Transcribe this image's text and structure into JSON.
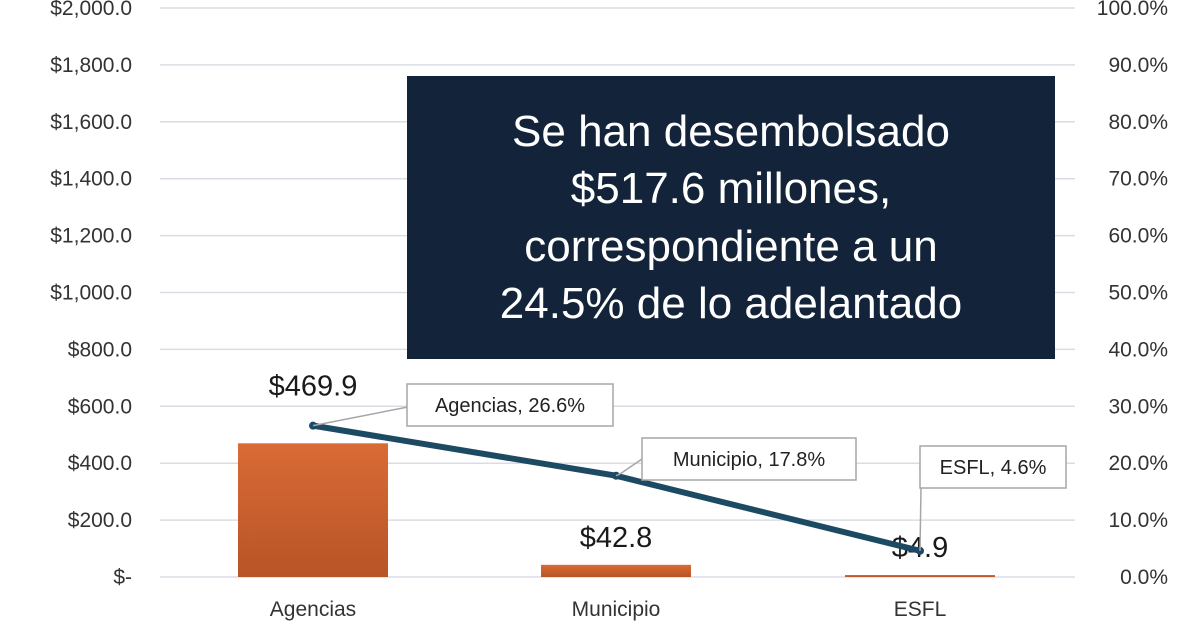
{
  "banner": {
    "lines": [
      "Se han desembolsado",
      "$517.6 millones,",
      "correspondiente a un",
      "24.5% de lo adelantado"
    ]
  },
  "colors": {
    "bar_top": "#d96b36",
    "bar_bottom": "#b85426",
    "line": "#1d4a63",
    "banner_bg": "#13243a"
  },
  "chart_data": {
    "type": "bar",
    "categories": [
      "Agencias",
      "Municipio",
      "ESFL"
    ],
    "series": [
      {
        "axis": "left",
        "chart": "bar",
        "values": [
          469.9,
          42.8,
          4.9
        ],
        "data_labels": [
          "$469.9",
          "$42.8",
          "$4.9"
        ]
      },
      {
        "axis": "right",
        "chart": "line",
        "values": [
          26.6,
          17.8,
          4.6
        ],
        "data_labels": [
          "Agencias, 26.6%",
          "Municipio, 17.8%",
          "ESFL, 4.6%"
        ]
      }
    ],
    "left_axis": {
      "ylim": [
        0,
        2000
      ],
      "ticks": [
        0,
        200,
        400,
        600,
        800,
        1000,
        1200,
        1400,
        1600,
        1800,
        2000
      ],
      "tick_labels": [
        "$-",
        "$200.0",
        "$400.0",
        "$600.0",
        "$800.0",
        "$1,000.0",
        "$1,200.0",
        "$1,400.0",
        "$1,600.0",
        "$1,800.0",
        "$2,000.0"
      ]
    },
    "right_axis": {
      "ylim": [
        0,
        100
      ],
      "ticks": [
        0,
        10,
        20,
        30,
        40,
        50,
        60,
        70,
        80,
        90,
        100
      ],
      "tick_labels": [
        "0.0%",
        "10.0%",
        "20.0%",
        "30.0%",
        "40.0%",
        "50.0%",
        "60.0%",
        "70.0%",
        "80.0%",
        "90.0%",
        "100.0%"
      ]
    },
    "grid": true,
    "legend": "none"
  }
}
